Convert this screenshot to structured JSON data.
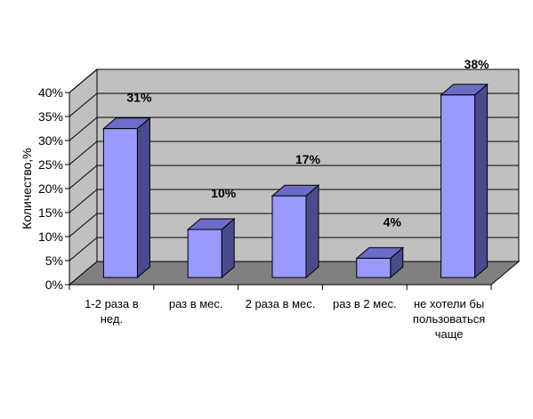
{
  "chart_data": {
    "type": "bar",
    "style": "3d-column",
    "ylabel": "Количество,%",
    "ylim": [
      0,
      40
    ],
    "y_ticks": [
      "0%",
      "5%",
      "10%",
      "15%",
      "20%",
      "25%",
      "30%",
      "35%",
      "40%"
    ],
    "categories": [
      [
        "1-2 раза в",
        "нед."
      ],
      [
        "раз в мес."
      ],
      [
        "2 раза в мес."
      ],
      [
        "раз в 2 мес."
      ],
      [
        "не хотели бы",
        "пользоваться",
        "чаще"
      ]
    ],
    "values": [
      31,
      10,
      17,
      4,
      38
    ],
    "data_labels": [
      "31%",
      "10%",
      "17%",
      "4%",
      "38%"
    ],
    "grid": true,
    "legend": "none",
    "colors": {
      "bar_front": "#9999ff",
      "bar_side": "#4a4a8c",
      "bar_top": "#6b6bc8",
      "wall": "#c0c0c0",
      "floor": "#808080",
      "gridline": "#000000"
    }
  }
}
